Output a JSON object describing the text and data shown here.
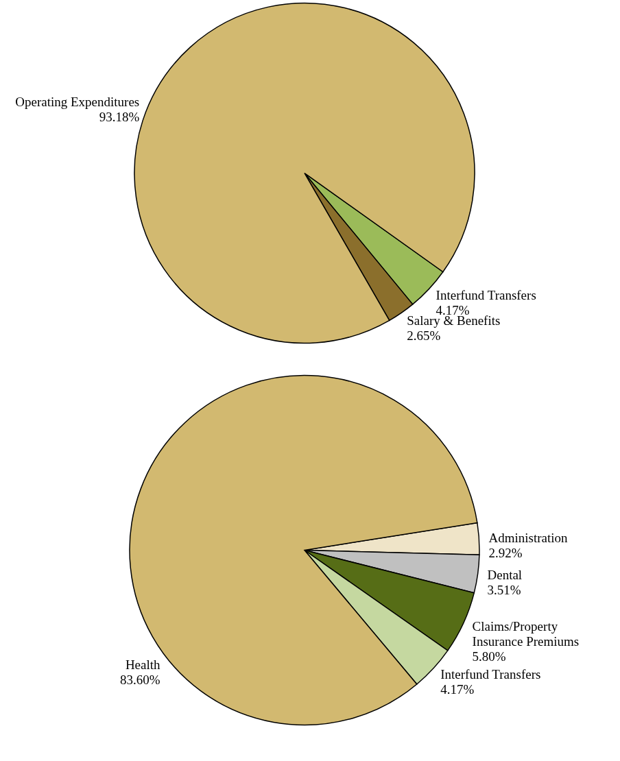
{
  "chart_data": [
    {
      "type": "pie",
      "categories": [
        "Interfund Transfers",
        "Salary & Benefits",
        "Operating Expenditures"
      ],
      "values": [
        4.17,
        2.65,
        93.18
      ],
      "colors": [
        "#9bbb59",
        "#8b6f2c",
        "#d2b970"
      ],
      "value_labels": [
        "4.17%",
        "2.65%",
        "93.18%"
      ]
    },
    {
      "type": "pie",
      "categories": [
        "Administration",
        "Dental",
        "Claims/Property Insurance Premiums",
        "Interfund Transfers",
        "Health"
      ],
      "values": [
        2.92,
        3.51,
        5.8,
        4.17,
        83.6
      ],
      "colors": [
        "#efe4c8",
        "#c0c0c0",
        "#566d16",
        "#c5d8a0",
        "#d2b970"
      ],
      "value_labels": [
        "2.92%",
        "3.51%",
        "5.80%",
        "4.17%",
        "83.60%"
      ]
    }
  ]
}
